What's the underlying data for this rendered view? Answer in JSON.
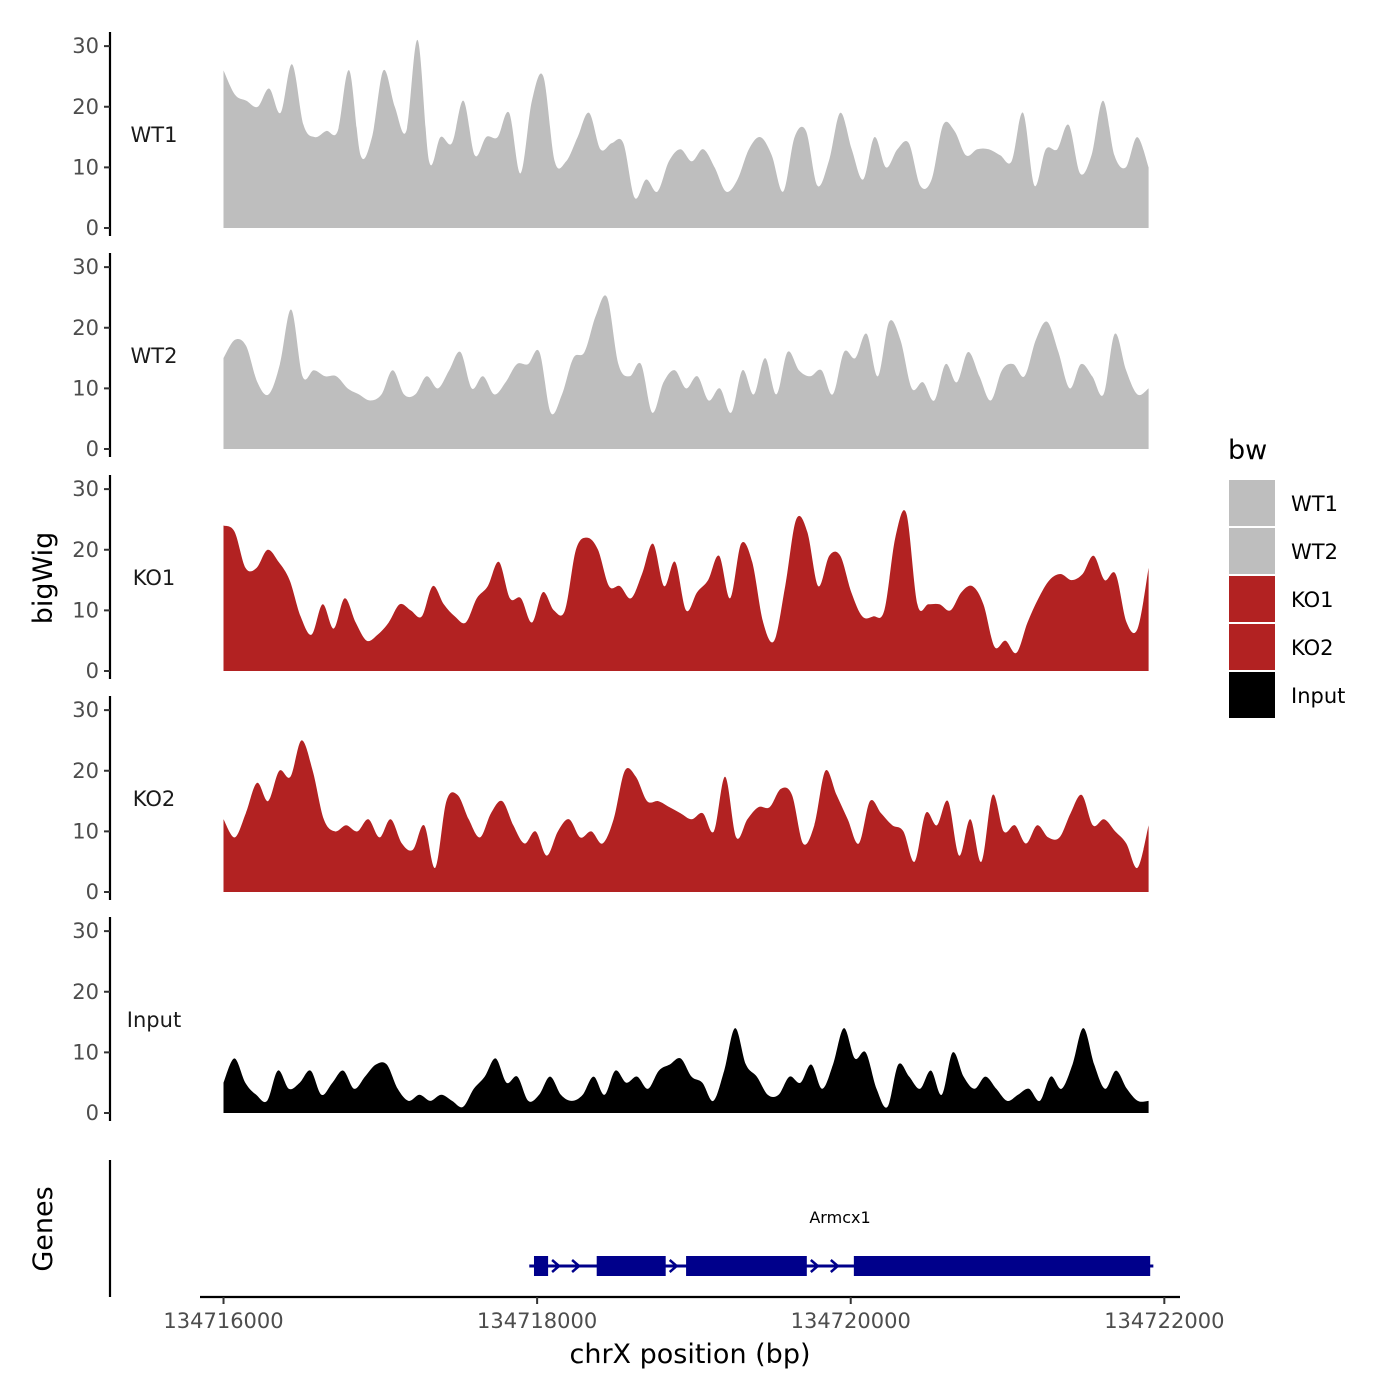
{
  "chart_data": {
    "type": "area",
    "title": "",
    "ylabel": "bigWig",
    "xlabel": "chrX position (bp)",
    "genes_panel_label": "Genes",
    "chromosome": "chrX",
    "x_range": [
      134715850,
      134722100
    ],
    "xlim_data": [
      134716000,
      134721900
    ],
    "ylim": [
      0,
      32
    ],
    "y_ticks": [
      0,
      10,
      20,
      30
    ],
    "y_tick_labels": [
      "0",
      "10",
      "20",
      "30"
    ],
    "x_ticks": [
      134716000,
      134718000,
      134720000,
      134722000
    ],
    "x_tick_labels": [
      "134716000",
      "134718000",
      "134720000",
      "134722000"
    ],
    "legend": {
      "title": "bw",
      "position": "right",
      "entries": [
        {
          "label": "WT1",
          "color": "#bebebe"
        },
        {
          "label": "WT2",
          "color": "#bebebe"
        },
        {
          "label": "KO1",
          "color": "#b22222"
        },
        {
          "label": "KO2",
          "color": "#b22222"
        },
        {
          "label": "Input",
          "color": "#000000"
        }
      ]
    },
    "series": [
      {
        "name": "WT1",
        "color": "#bebebe",
        "x_start": 134716000,
        "x_end": 134721900,
        "values": [
          26,
          22,
          21,
          20,
          23,
          19,
          27,
          17,
          15,
          16,
          16,
          26,
          12,
          15,
          26,
          20,
          16,
          31,
          11,
          15,
          14,
          21,
          12,
          15,
          15,
          19,
          9,
          21,
          25,
          11,
          11,
          15,
          19,
          13,
          14,
          14,
          5,
          8,
          6,
          11,
          13,
          11,
          13,
          10,
          6,
          8,
          13,
          15,
          12,
          6,
          15,
          16,
          7,
          11,
          19,
          13,
          8,
          15,
          10,
          13,
          14,
          7,
          8,
          17,
          16,
          12,
          13,
          13,
          12,
          11,
          19,
          7,
          13,
          13,
          17,
          9,
          12,
          21,
          12,
          10,
          15,
          10
        ]
      },
      {
        "name": "WT2",
        "color": "#bebebe",
        "x_start": 134716000,
        "x_end": 134721900,
        "values": [
          15,
          18,
          17,
          11,
          9,
          14,
          23,
          12,
          13,
          12,
          12,
          10,
          9,
          8,
          9,
          13,
          9,
          9,
          12,
          10,
          13,
          16,
          10,
          12,
          9,
          11,
          14,
          14,
          16,
          6,
          9,
          15,
          16,
          22,
          25,
          14,
          12,
          14,
          6,
          11,
          13,
          10,
          12,
          8,
          10,
          6,
          13,
          9,
          15,
          9,
          16,
          13,
          12,
          13,
          9,
          16,
          15,
          19,
          12,
          21,
          18,
          10,
          11,
          8,
          14,
          11,
          16,
          12,
          8,
          13,
          14,
          12,
          18,
          21,
          16,
          10,
          14,
          12,
          9,
          19,
          13,
          9,
          10
        ]
      },
      {
        "name": "KO1",
        "color": "#b22222",
        "x_start": 134716000,
        "x_end": 134721900,
        "values": [
          24,
          23,
          17,
          17,
          20,
          18,
          15,
          9,
          6,
          11,
          7,
          12,
          8,
          5,
          6,
          8,
          11,
          10,
          9,
          14,
          11,
          9,
          8,
          12,
          14,
          18,
          12,
          12,
          8,
          13,
          10,
          10,
          20,
          22,
          20,
          14,
          14,
          12,
          16,
          21,
          14,
          18,
          10,
          13,
          15,
          19,
          12,
          21,
          18,
          8,
          5,
          14,
          25,
          23,
          14,
          19,
          19,
          13,
          9,
          9,
          10,
          22,
          26,
          11,
          11,
          11,
          10,
          13,
          14,
          11,
          4,
          5,
          3,
          8,
          12,
          15,
          16,
          15,
          16,
          19,
          15,
          16,
          8,
          7,
          17
        ]
      },
      {
        "name": "KO2",
        "color": "#b22222",
        "x_start": 134716000,
        "x_end": 134721900,
        "values": [
          12,
          9,
          13,
          18,
          15,
          20,
          19,
          25,
          20,
          12,
          10,
          11,
          10,
          12,
          9,
          12,
          8,
          7,
          11,
          4,
          15,
          16,
          12,
          9,
          13,
          15,
          11,
          8,
          10,
          6,
          10,
          12,
          9,
          10,
          8,
          12,
          20,
          19,
          15,
          15,
          14,
          13,
          12,
          13,
          10,
          19,
          9,
          12,
          14,
          14,
          17,
          16,
          8,
          11,
          20,
          16,
          12,
          8,
          15,
          13,
          11,
          10,
          5,
          13,
          11,
          15,
          6,
          12,
          5,
          16,
          10,
          11,
          8,
          11,
          9,
          9,
          13,
          16,
          11,
          12,
          10,
          8,
          4,
          11
        ]
      },
      {
        "name": "Input",
        "color": "#000000",
        "x_start": 134716000,
        "x_end": 134721900,
        "values": [
          5,
          9,
          5,
          3,
          2,
          7,
          4,
          5,
          7,
          3,
          5,
          7,
          4,
          6,
          8,
          8,
          4,
          2,
          3,
          2,
          3,
          2,
          1,
          4,
          6,
          9,
          5,
          6,
          2,
          3,
          6,
          3,
          2,
          3,
          6,
          3,
          7,
          5,
          6,
          4,
          7,
          8,
          9,
          6,
          5,
          2,
          7,
          14,
          8,
          6,
          3,
          3,
          6,
          5,
          8,
          4,
          8,
          14,
          9,
          10,
          4,
          1,
          8,
          6,
          4,
          7,
          3,
          10,
          6,
          4,
          6,
          4,
          2,
          3,
          4,
          2,
          6,
          4,
          8,
          14,
          8,
          4,
          7,
          4,
          2,
          2
        ]
      }
    ],
    "gene": {
      "name": "Armcx1",
      "color": "#00008b",
      "strand": "+",
      "start": 134717950,
      "end": 134721930,
      "exons": [
        [
          134717980,
          134718070
        ],
        [
          134718380,
          134718820
        ],
        [
          134718950,
          134719720
        ],
        [
          134720020,
          134721910
        ]
      ]
    }
  }
}
